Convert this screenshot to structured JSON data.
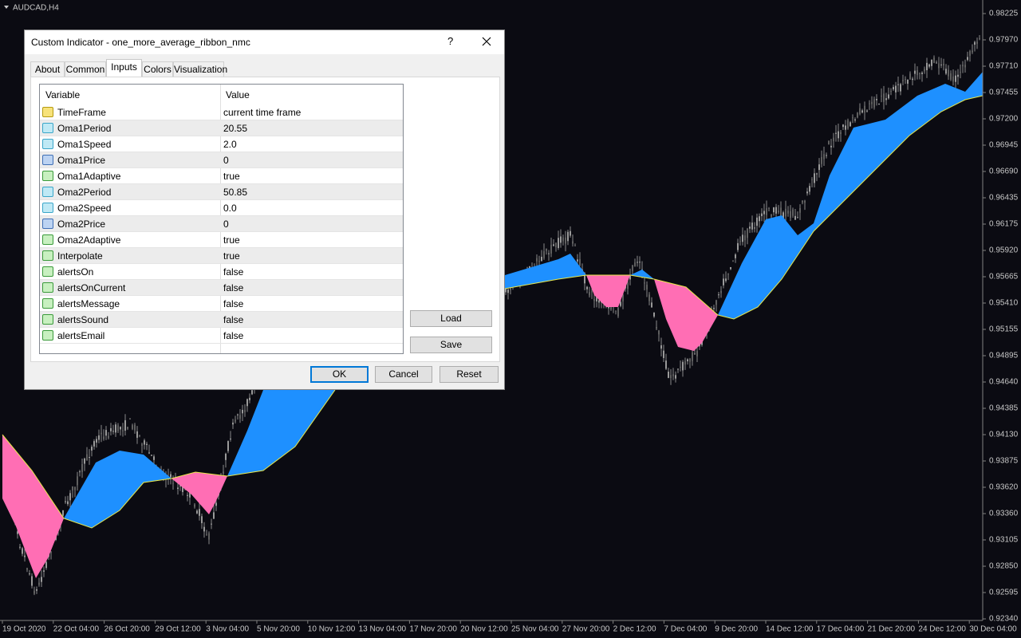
{
  "chart": {
    "symbol": "AUDCAD,H4",
    "price_labels": [
      "0.98225",
      "0.97970",
      "0.97710",
      "0.97455",
      "0.97200",
      "0.96945",
      "0.96690",
      "0.96435",
      "0.96175",
      "0.95920",
      "0.95665",
      "0.95410",
      "0.95155",
      "0.94895",
      "0.94640",
      "0.94385",
      "0.94130",
      "0.93875",
      "0.93620",
      "0.93360",
      "0.93105",
      "0.92850",
      "0.92595",
      "0.92340"
    ],
    "time_labels": [
      "19 Oct 2020",
      "22 Oct 04:00",
      "26 Oct 20:00",
      "29 Oct 12:00",
      "3 Nov 04:00",
      "5 Nov 20:00",
      "10 Nov 12:00",
      "13 Nov 04:00",
      "17 Nov 20:00",
      "20 Nov 12:00",
      "25 Nov 04:00",
      "27 Nov 20:00",
      "2 Dec 12:00",
      "7 Dec 04:00",
      "9 Dec 20:00",
      "14 Dec 12:00",
      "17 Dec 04:00",
      "21 Dec 20:00",
      "24 Dec 12:00",
      "30 Dec 04:00"
    ]
  },
  "dialog": {
    "title": "Custom Indicator - one_more_average_ribbon_nmc",
    "help": "?",
    "tabs": [
      "About",
      "Common",
      "Inputs",
      "Colors",
      "Visualization"
    ],
    "table": {
      "headers": [
        "Variable",
        "Value"
      ],
      "rows": [
        [
          "TimeFrame",
          "current time frame"
        ],
        [
          "Oma1Period",
          "20.55"
        ],
        [
          "Oma1Speed",
          "2.0"
        ],
        [
          "Oma1Price",
          "0"
        ],
        [
          "Oma1Adaptive",
          "true"
        ],
        [
          "Oma2Period",
          "50.85"
        ],
        [
          "Oma2Speed",
          "0.0"
        ],
        [
          "Oma2Price",
          "0"
        ],
        [
          "Oma2Adaptive",
          "true"
        ],
        [
          "Interpolate",
          "true"
        ],
        [
          "alertsOn",
          "false"
        ],
        [
          "alertsOnCurrent",
          "false"
        ],
        [
          "alertsMessage",
          "false"
        ],
        [
          "alertsSound",
          "false"
        ],
        [
          "alertsEmail",
          "false"
        ]
      ]
    },
    "side_buttons": [
      "Load",
      "Save"
    ],
    "buttons": [
      "OK",
      "Cancel",
      "Reset"
    ]
  }
}
